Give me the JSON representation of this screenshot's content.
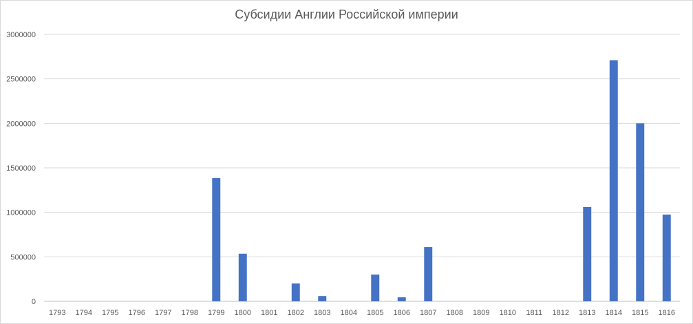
{
  "chart_data": {
    "type": "bar",
    "title": "Субсидии Англии Российской империи",
    "xlabel": "",
    "ylabel": "",
    "categories": [
      "1793",
      "1794",
      "1795",
      "1796",
      "1797",
      "1798",
      "1799",
      "1800",
      "1801",
      "1802",
      "1803",
      "1804",
      "1805",
      "1806",
      "1807",
      "1808",
      "1809",
      "1810",
      "1811",
      "1812",
      "1813",
      "1814",
      "1815",
      "1816"
    ],
    "values": [
      0,
      0,
      0,
      0,
      0,
      0,
      1385000,
      535000,
      0,
      200000,
      60000,
      0,
      300000,
      45000,
      610000,
      0,
      0,
      0,
      0,
      0,
      1060000,
      2710000,
      2000000,
      975000
    ],
    "ylim": [
      0,
      3000000
    ],
    "yticks": [
      "0",
      "500000",
      "1000000",
      "1500000",
      "2000000",
      "2500000",
      "3000000"
    ],
    "grid": true,
    "legend": "none",
    "bar_color": "#4472c4"
  }
}
